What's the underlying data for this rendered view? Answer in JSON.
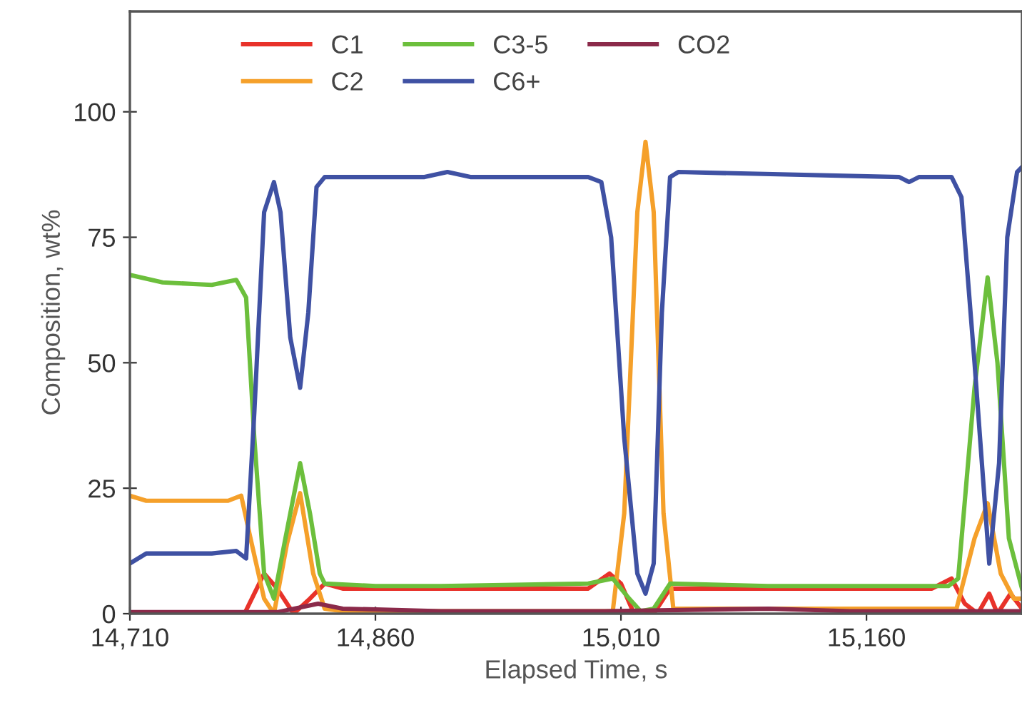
{
  "chart_data": {
    "type": "line",
    "xlabel": "Elapsed Time, s",
    "ylabel": "Composition, wt%",
    "xlim": [
      14710,
      15255
    ],
    "xticks": [
      {
        "value": 14710,
        "label": "14,710"
      },
      {
        "value": 14860,
        "label": "14,860"
      },
      {
        "value": 15010,
        "label": "15,010"
      },
      {
        "value": 15160,
        "label": "15,160"
      }
    ],
    "ylim": [
      0,
      120
    ],
    "yticks": [
      0,
      25,
      50,
      75,
      100
    ],
    "grid": false,
    "legend": "top",
    "marker": "none",
    "line_style": "solid",
    "series": [
      {
        "name": "C1",
        "color": "#e8322a",
        "x": [
          14710,
          14780,
          14792,
          14800,
          14810,
          14820,
          14829,
          14840,
          14990,
          15003,
          15010,
          15018,
          15030,
          15040,
          15200,
          15212,
          15220,
          15228,
          15235,
          15240,
          15248,
          15255
        ],
        "values": [
          0,
          0,
          8,
          5,
          0,
          3,
          6,
          5,
          5,
          8,
          6,
          0,
          0,
          5,
          5,
          7,
          2,
          0,
          4,
          0,
          4,
          1
        ]
      },
      {
        "name": "C2",
        "color": "#f5a02a",
        "x": [
          14710,
          14720,
          14770,
          14778,
          14783,
          14792,
          14798,
          14806,
          14814,
          14822,
          14829,
          14840,
          15005,
          15012,
          15020,
          15025,
          15030,
          15036,
          15042,
          15200,
          15215,
          15226,
          15234,
          15242,
          15250,
          15255
        ],
        "values": [
          23.5,
          22.5,
          22.5,
          23.5,
          16,
          3,
          0,
          14,
          24,
          8,
          1,
          0.5,
          0.5,
          20,
          80,
          94,
          80,
          20,
          1,
          1,
          1,
          15,
          22,
          8,
          3,
          3
        ]
      },
      {
        "name": "C3-5",
        "color": "#6cbf3c",
        "x": [
          14710,
          14730,
          14760,
          14775,
          14781,
          14786,
          14792,
          14798,
          14805,
          14814,
          14820,
          14826,
          14829,
          14860,
          14900,
          14990,
          15005,
          15015,
          15022,
          15030,
          15040,
          15100,
          15210,
          15216,
          15226,
          15234,
          15240,
          15247,
          15255
        ],
        "values": [
          67.5,
          66,
          65.5,
          66.5,
          63,
          35,
          8,
          3,
          15,
          30,
          20,
          8,
          6,
          5.5,
          5.5,
          6,
          7,
          3,
          0.5,
          1,
          6,
          5.5,
          5.5,
          7,
          45,
          67,
          50,
          15,
          5
        ]
      },
      {
        "name": "C6+",
        "color": "#3f51a3",
        "x": [
          14710,
          14720,
          14760,
          14775,
          14781,
          14786,
          14792,
          14798,
          14802,
          14808,
          14814,
          14819,
          14824,
          14829,
          14890,
          14904,
          14918,
          14990,
          14998,
          15004,
          15012,
          15020,
          15025,
          15030,
          15035,
          15040,
          15045,
          15180,
          15186,
          15192,
          15212,
          15218,
          15226,
          15235,
          15241,
          15246,
          15252,
          15255
        ],
        "values": [
          10,
          12,
          12,
          12.5,
          11,
          40,
          80,
          86,
          80,
          55,
          45,
          60,
          85,
          87,
          87,
          88,
          87,
          87,
          86,
          75,
          35,
          8,
          4,
          10,
          60,
          87,
          88,
          87,
          86,
          87,
          87,
          83,
          50,
          10,
          30,
          75,
          88,
          89
        ]
      },
      {
        "name": "CO2",
        "color": "#8b2a4a",
        "x": [
          14710,
          14800,
          14825,
          14840,
          14900,
          15000,
          15100,
          15150,
          15255
        ],
        "values": [
          0.3,
          0.3,
          2,
          1,
          0.5,
          0.5,
          1,
          0.5,
          0.5
        ]
      }
    ]
  }
}
